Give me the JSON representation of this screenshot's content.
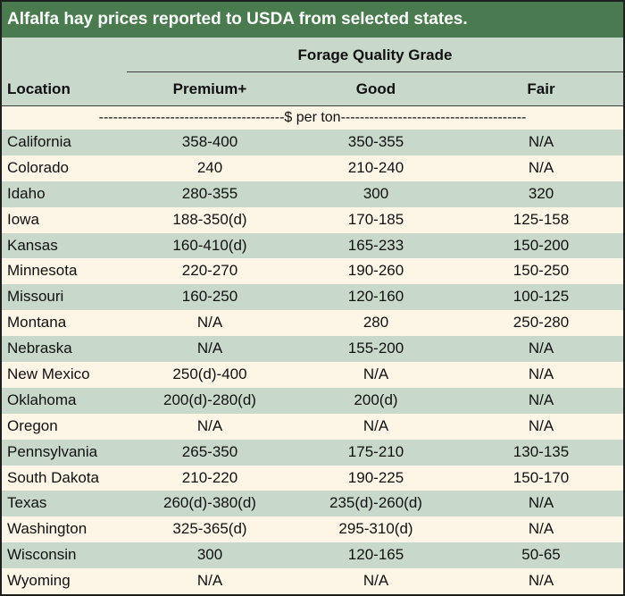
{
  "title": "Alfalfa hay prices reported to USDA from selected states.",
  "header": {
    "group_label": "Forage Quality Grade",
    "location": "Location",
    "premium": "Premium+",
    "good": "Good",
    "fair": "Fair"
  },
  "unit_label": "---------------------------------------$ per ton---------------------------------------",
  "colors": {
    "title_bg": "#4a7b4f",
    "shade": "#c8d9cc",
    "plain": "#fdf6e7"
  },
  "rows": [
    {
      "location": "California",
      "premium": "358-400",
      "good": "350-355",
      "fair": "N/A"
    },
    {
      "location": "Colorado",
      "premium": "240",
      "good": "210-240",
      "fair": "N/A"
    },
    {
      "location": "Idaho",
      "premium": "280-355",
      "good": "300",
      "fair": "320"
    },
    {
      "location": "Iowa",
      "premium": "188-350(d)",
      "good": "170-185",
      "fair": "125-158"
    },
    {
      "location": "Kansas",
      "premium": "160-410(d)",
      "good": "165-233",
      "fair": "150-200"
    },
    {
      "location": "Minnesota",
      "premium": "220-270",
      "good": "190-260",
      "fair": "150-250"
    },
    {
      "location": "Missouri",
      "premium": "160-250",
      "good": "120-160",
      "fair": "100-125"
    },
    {
      "location": "Montana",
      "premium": "N/A",
      "good": "280",
      "fair": "250-280"
    },
    {
      "location": "Nebraska",
      "premium": "N/A",
      "good": "155-200",
      "fair": "N/A"
    },
    {
      "location": "New Mexico",
      "premium": "250(d)-400",
      "good": "N/A",
      "fair": "N/A"
    },
    {
      "location": "Oklahoma",
      "premium": "200(d)-280(d)",
      "good": "200(d)",
      "fair": "N/A"
    },
    {
      "location": "Oregon",
      "premium": "N/A",
      "good": "N/A",
      "fair": "N/A"
    },
    {
      "location": "Pennsylvania",
      "premium": "265-350",
      "good": "175-210",
      "fair": "130-135"
    },
    {
      "location": "South Dakota",
      "premium": "210-220",
      "good": "190-225",
      "fair": "150-170"
    },
    {
      "location": "Texas",
      "premium": "260(d)-380(d)",
      "good": "235(d)-260(d)",
      "fair": "N/A"
    },
    {
      "location": "Washington",
      "premium": "325-365(d)",
      "good": "295-310(d)",
      "fair": "N/A"
    },
    {
      "location": "Wisconsin",
      "premium": "300",
      "good": "120-165",
      "fair": "50-65"
    },
    {
      "location": "Wyoming",
      "premium": "N/A",
      "good": "N/A",
      "fair": "N/A"
    }
  ]
}
